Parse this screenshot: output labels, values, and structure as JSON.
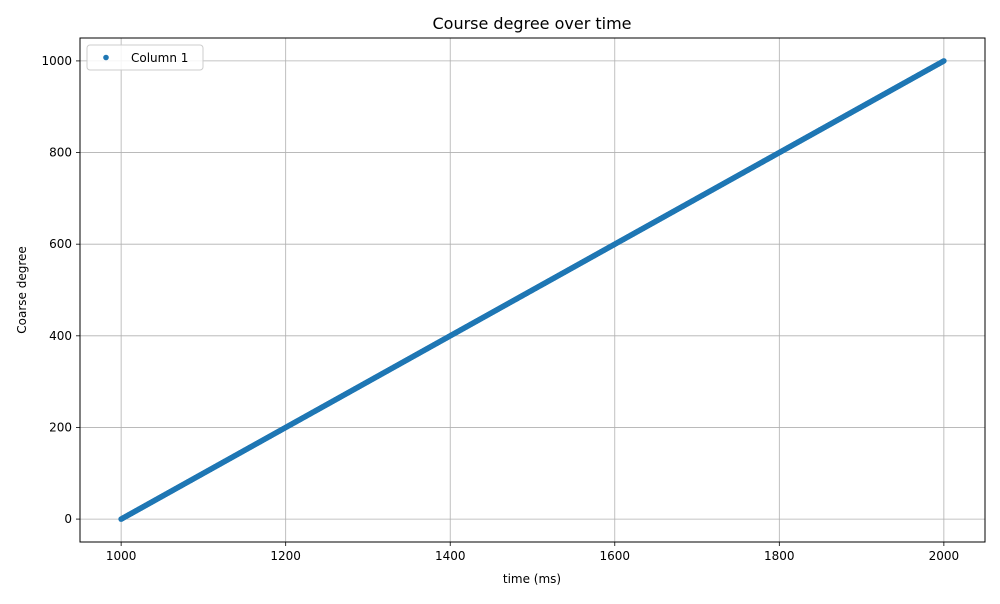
{
  "chart_data": {
    "type": "scatter",
    "title": "Course degree over time",
    "xlabel": "time (ms)",
    "ylabel": "Coarse degree",
    "xlim": [
      950,
      2050
    ],
    "ylim": [
      -50,
      1050
    ],
    "xticks": [
      1000,
      1200,
      1400,
      1600,
      1800,
      2000
    ],
    "yticks": [
      0,
      200,
      400,
      600,
      800,
      1000
    ],
    "grid": true,
    "legend_position": "upper-left",
    "series": [
      {
        "name": "Column 1",
        "color": "#1f77b4",
        "x_start": 1000,
        "x_end": 2000,
        "y_start": 0,
        "y_end": 1000,
        "x": [
          1000,
          1100,
          1200,
          1300,
          1400,
          1500,
          1600,
          1700,
          1800,
          1900,
          2000
        ],
        "y": [
          0,
          100,
          200,
          300,
          400,
          500,
          600,
          700,
          800,
          900,
          1000
        ]
      }
    ]
  }
}
